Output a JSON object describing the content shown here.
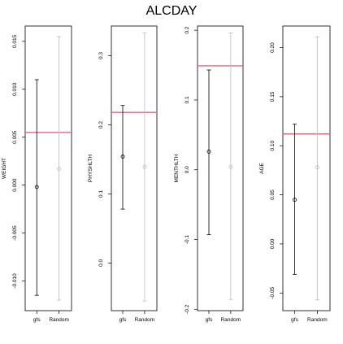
{
  "chart_data": [
    {
      "type": "errorbar",
      "title": "ALCDAY",
      "ylabel": "WEIGHT",
      "categories": [
        "gfs",
        "Random"
      ],
      "ylim": [
        -0.0131,
        0.0166
      ],
      "yticks": [
        -0.01,
        -0.005,
        0.0,
        0.005,
        0.01,
        0.015
      ],
      "ytick_labels": [
        "-0.010",
        "-0.005",
        "0.000",
        "0.005",
        "0.010",
        "0.015"
      ],
      "reference_line": 0.0055,
      "series": [
        {
          "category": "gfs",
          "center": -0.0002,
          "lower": -0.0115,
          "upper": 0.011,
          "color": "#000000"
        },
        {
          "category": "Random",
          "center": 0.0017,
          "lower": -0.012,
          "upper": 0.0155,
          "color": "#bbbbbb"
        }
      ],
      "ref_color": "#f0607f"
    },
    {
      "type": "errorbar",
      "ylabel": "PHYSHLTH",
      "categories": [
        "gfs",
        "Random"
      ],
      "ylim": [
        -0.069,
        0.343
      ],
      "yticks": [
        0.0,
        0.1,
        0.2,
        0.3
      ],
      "ytick_labels": [
        "0.0",
        "0.1",
        "0.2",
        "0.3"
      ],
      "reference_line": 0.218,
      "series": [
        {
          "category": "gfs",
          "center": 0.154,
          "lower": 0.078,
          "upper": 0.228,
          "color": "#000000"
        },
        {
          "category": "Random",
          "center": 0.139,
          "lower": -0.055,
          "upper": 0.333,
          "color": "#bbbbbb"
        }
      ],
      "ref_color": "#f0607f"
    },
    {
      "type": "errorbar",
      "ylabel": "MENTHLTH",
      "categories": [
        "gfs",
        "Random"
      ],
      "ylim": [
        -0.202,
        0.206
      ],
      "yticks": [
        -0.2,
        -0.1,
        0.0,
        0.1,
        0.2
      ],
      "ytick_labels": [
        "-0.2",
        "-0.1",
        "0.0",
        "0.1",
        "0.2"
      ],
      "reference_line": 0.149,
      "series": [
        {
          "category": "gfs",
          "center": 0.026,
          "lower": -0.093,
          "upper": 0.143,
          "color": "#000000"
        },
        {
          "category": "Random",
          "center": 0.004,
          "lower": -0.186,
          "upper": 0.196,
          "color": "#bbbbbb"
        }
      ],
      "ref_color": "#f0607f"
    },
    {
      "type": "errorbar",
      "ylabel": "AGE",
      "categories": [
        "gfs",
        "Random"
      ],
      "ylim": [
        -0.068,
        0.222
      ],
      "yticks": [
        -0.05,
        0.0,
        0.05,
        0.1,
        0.15,
        0.2
      ],
      "ytick_labels": [
        "-0.05",
        "0.00",
        "0.05",
        "0.10",
        "0.15",
        "0.20"
      ],
      "reference_line": 0.112,
      "series": [
        {
          "category": "gfs",
          "center": 0.045,
          "lower": -0.031,
          "upper": 0.122,
          "color": "#000000"
        },
        {
          "category": "Random",
          "center": 0.078,
          "lower": -0.057,
          "upper": 0.211,
          "color": "#bbbbbb"
        }
      ],
      "ref_color": "#f0607f"
    }
  ]
}
